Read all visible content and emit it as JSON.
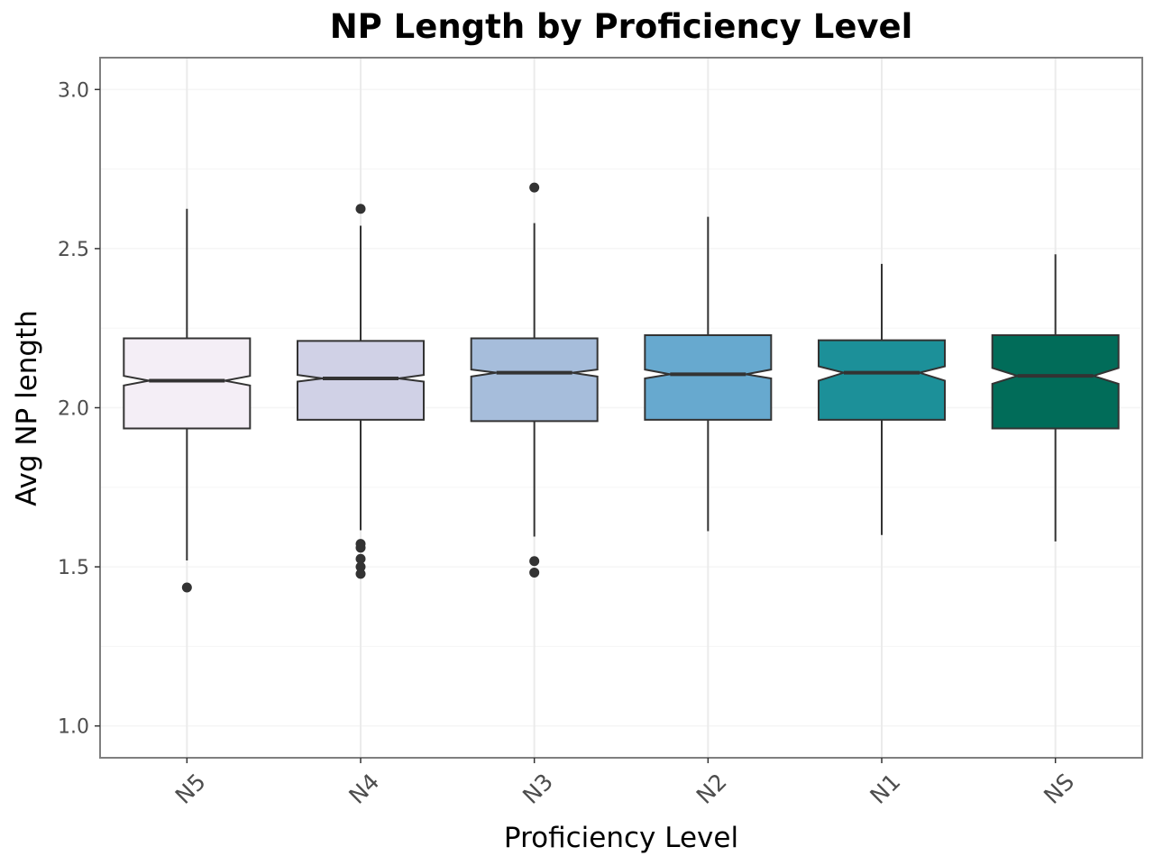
{
  "chart_data": {
    "type": "boxplot",
    "notched": true,
    "title": "NP Length by Proficiency Level",
    "xlabel": "Proficiency Level",
    "ylabel": "Avg NP length",
    "ylim": [
      0.9,
      3.1
    ],
    "yticks": [
      1.0,
      1.5,
      2.0,
      2.5,
      3.0
    ],
    "ytick_labels": [
      "1.0",
      "1.5",
      "2.0",
      "2.5",
      "3.0"
    ],
    "grid": true,
    "legend": "none",
    "x_tick_rotation_deg": 45,
    "categories": [
      "N5",
      "N4",
      "N3",
      "N2",
      "N1",
      "NS"
    ],
    "boxes": [
      {
        "category": "N5",
        "fill": "#f4eef6",
        "whisker_low": 1.52,
        "q1": 1.935,
        "notch_low": 2.07,
        "median": 2.085,
        "notch_high": 2.1,
        "q3": 2.218,
        "whisker_high": 2.625,
        "outliers": [
          1.435
        ]
      },
      {
        "category": "N4",
        "fill": "#d0d1e6",
        "whisker_low": 1.615,
        "q1": 1.962,
        "notch_low": 2.082,
        "median": 2.092,
        "notch_high": 2.103,
        "q3": 2.21,
        "whisker_high": 2.572,
        "outliers": [
          2.625,
          1.572,
          1.56,
          1.525,
          1.5,
          1.478
        ]
      },
      {
        "category": "N3",
        "fill": "#a6bddb",
        "whisker_low": 1.595,
        "q1": 1.958,
        "notch_low": 2.098,
        "median": 2.11,
        "notch_high": 2.12,
        "q3": 2.218,
        "whisker_high": 2.58,
        "outliers": [
          2.692,
          1.518,
          1.482
        ]
      },
      {
        "category": "N2",
        "fill": "#67a9cf",
        "whisker_low": 1.612,
        "q1": 1.962,
        "notch_low": 2.092,
        "median": 2.105,
        "notch_high": 2.12,
        "q3": 2.228,
        "whisker_high": 2.6,
        "outliers": []
      },
      {
        "category": "N1",
        "fill": "#1c9099",
        "whisker_low": 1.6,
        "q1": 1.962,
        "notch_low": 2.085,
        "median": 2.11,
        "notch_high": 2.13,
        "q3": 2.212,
        "whisker_high": 2.452,
        "outliers": []
      },
      {
        "category": "NS",
        "fill": "#016c59",
        "whisker_low": 1.58,
        "q1": 1.935,
        "notch_low": 2.075,
        "median": 2.1,
        "notch_high": 2.125,
        "q3": 2.228,
        "whisker_high": 2.482,
        "outliers": []
      }
    ]
  },
  "colors": {
    "panel_border": "#7f7f7f",
    "grid_major": "#ebebeb",
    "grid_minor": "#f5f5f5",
    "box_stroke": "#333333",
    "tick_text": "#4d4d4d",
    "title_text": "#000000"
  }
}
